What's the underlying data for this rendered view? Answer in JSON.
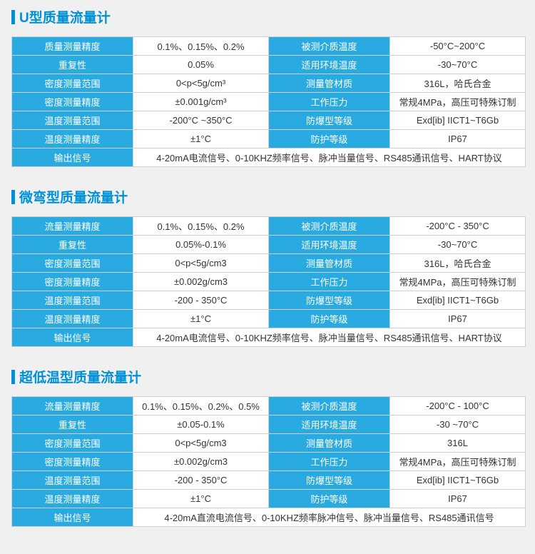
{
  "sections": [
    {
      "title": "U型质量流量计",
      "rows": [
        [
          "质量测量精度",
          "0.1%、0.15%、0.2%",
          "被测介质温度",
          "-50°C~200°C"
        ],
        [
          "重复性",
          "0.05%",
          "适用环境温度",
          "-30~70°C"
        ],
        [
          "密度测量范围",
          "0<p<5g/cm³",
          "测量管材质",
          "316L，哈氏合金"
        ],
        [
          "密度测量精度",
          "±0.001g/cm³",
          "工作压力",
          "常规4MPa，高压可特殊订制"
        ],
        [
          "温度测量范围",
          "-200°C ~350°C",
          "防爆型等级",
          "Exd[ib] IICT1~T6Gb"
        ],
        [
          "温度测量精度",
          "±1°C",
          "防护等级",
          "IP67"
        ]
      ],
      "footer_label": "输出信号",
      "footer_value": "4-20mA电流信号、0-10KHZ频率信号、脉冲当量信号、RS485通讯信号、HART协议"
    },
    {
      "title": "微弯型质量流量计",
      "rows": [
        [
          "流量测量精度",
          "0.1%、0.15%、0.2%",
          "被测介质温度",
          "-200°C - 350°C"
        ],
        [
          "重复性",
          "0.05%-0.1%",
          "适用环境温度",
          "-30~70°C"
        ],
        [
          "密度测量范围",
          "0<p<5g/cm3",
          "测量管材质",
          "316L，哈氏合金"
        ],
        [
          "密度测量精度",
          "±0.002g/cm3",
          "工作压力",
          "常规4MPa，高压可特殊订制"
        ],
        [
          "温度测量范围",
          "-200 - 350°C",
          "防爆型等级",
          "Exd[ib] IICT1~T6Gb"
        ],
        [
          "温度测量精度",
          "±1°C",
          "防护等级",
          "IP67"
        ]
      ],
      "footer_label": "输出信号",
      "footer_value": "4-20mA电流信号、0-10KHZ频率信号、脉冲当量信号、RS485通讯信号、HART协议"
    },
    {
      "title": "超低温型质量流量计",
      "rows": [
        [
          "流量测量精度",
          "0.1%、0.15%、0.2%、0.5%",
          "被测介质温度",
          "-200°C - 100°C"
        ],
        [
          "重复性",
          "±0.05-0.1%",
          "适用环境温度",
          "-30 ~70°C"
        ],
        [
          "密度测量范围",
          "0<p<5g/cm3",
          "测量管材质",
          "316L"
        ],
        [
          "密度测量精度",
          "±0.002g/cm3",
          "工作压力",
          "常规4MPa，高压可特殊订制"
        ],
        [
          "温度测量范围",
          "-200 - 350°C",
          "防爆型等级",
          "Exd[ib] IICT1~T6Gb"
        ],
        [
          "温度测量精度",
          "±1°C",
          "防护等级",
          "IP67"
        ]
      ],
      "footer_label": "输出信号",
      "footer_value": "4-20mA直流电流信号、0-10KHZ频率脉冲信号、脉冲当量信号、RS485通讯信号"
    }
  ],
  "colors": {
    "header_bg": "#29abe2",
    "header_fg": "#ffffff",
    "value_bg": "#ffffff",
    "value_fg": "#333333",
    "border": "#d0d0d0",
    "title_color": "#0090d8",
    "page_bg": "#f0f0f0"
  }
}
